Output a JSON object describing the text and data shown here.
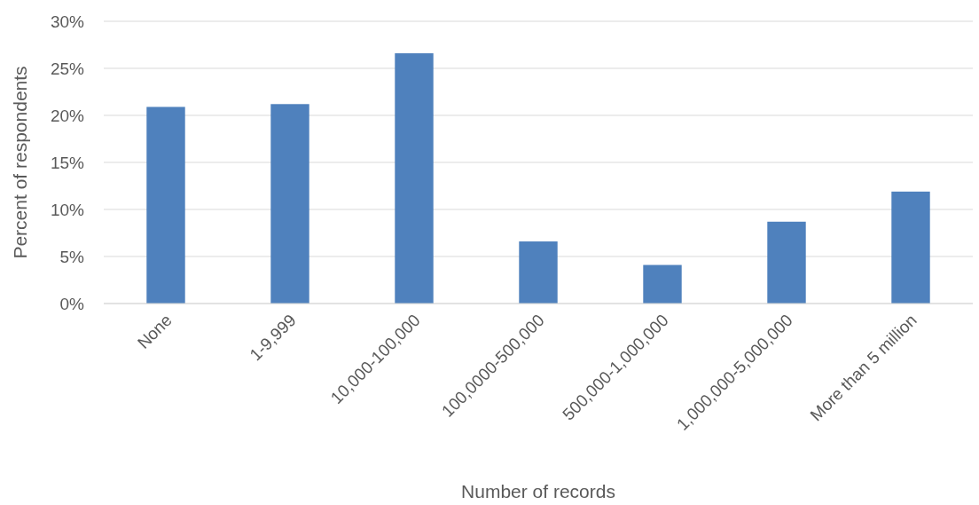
{
  "chart_data": {
    "type": "bar",
    "xlabel": "Number of records",
    "ylabel": "Percent of respondents",
    "categories": [
      "None",
      "1-9,999",
      "10,000-100,000",
      "100,0000-500,000",
      "500,000-1,000,000",
      "1,000,000-5,000,000",
      "More than 5 million"
    ],
    "values": [
      20.9,
      21.2,
      26.6,
      6.6,
      4.1,
      8.7,
      11.9
    ],
    "color": "#4f81bd",
    "ylim": [
      0,
      30
    ],
    "yticks": [
      {
        "value": 0,
        "label": "0%"
      },
      {
        "value": 5,
        "label": "5%"
      },
      {
        "value": 10,
        "label": "10%"
      },
      {
        "value": 15,
        "label": "15%"
      },
      {
        "value": 20,
        "label": "20%"
      },
      {
        "value": 25,
        "label": "25%"
      },
      {
        "value": 30,
        "label": "30%"
      }
    ],
    "grid": "y"
  }
}
